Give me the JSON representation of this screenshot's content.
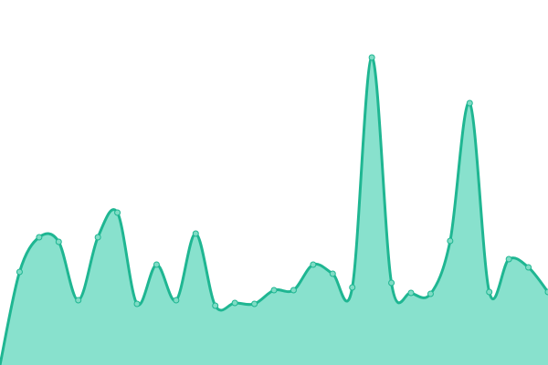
{
  "chart_data": {
    "type": "area",
    "values": [
      0,
      102,
      140,
      135,
      71,
      140,
      167,
      67,
      110,
      71,
      144,
      65,
      68,
      67,
      82,
      82,
      110,
      100,
      85,
      337,
      90,
      79,
      78,
      136,
      287,
      80,
      116,
      107,
      80
    ],
    "ylim": [
      0,
      400
    ],
    "color": "#1fb692",
    "fill": "#88e1cd",
    "marker_fill": "#7fdcc5"
  }
}
